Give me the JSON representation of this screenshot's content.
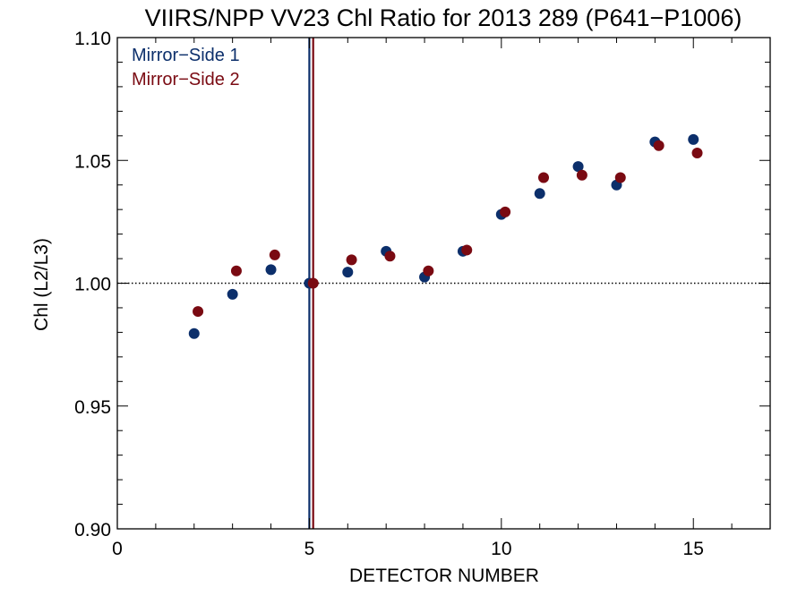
{
  "chart_data": {
    "type": "scatter",
    "title": "VIIRS/NPP VV23 Chl Ratio for 2013 289 (P641−P1006)",
    "xlabel": "DETECTOR NUMBER",
    "ylabel": "Chl (L2/L3)",
    "xlim": [
      0,
      17
    ],
    "ylim": [
      0.9,
      1.1
    ],
    "xticks": [
      0,
      5,
      10,
      15
    ],
    "xtick_labels": [
      "0",
      "5",
      "10",
      "15"
    ],
    "yticks": [
      0.9,
      0.95,
      1.0,
      1.05,
      1.1
    ],
    "ytick_labels": [
      "0.90",
      "0.95",
      "1.00",
      "1.05",
      "1.10"
    ],
    "x_minor_step": 1,
    "y_minor_step": 0.01,
    "reference_line_y": 1.0,
    "reference_line_style": "dotted",
    "vertical_lines": [
      {
        "x": 5.0,
        "color": "#0c2f6b"
      },
      {
        "x": 5.1,
        "color": "#7a0a12"
      }
    ],
    "legend_placement": "top-left",
    "series": [
      {
        "name": "Mirror−Side 1",
        "color": "#0c2f6b",
        "x": [
          2,
          3,
          4,
          5,
          6,
          7,
          8,
          9,
          10,
          11,
          12,
          13,
          14,
          15
        ],
        "y": [
          0.9795,
          0.9955,
          1.0055,
          1.0,
          1.0045,
          1.013,
          1.0025,
          1.013,
          1.028,
          1.0365,
          1.0475,
          1.04,
          1.0575,
          1.0585
        ]
      },
      {
        "name": "Mirror−Side 2",
        "color": "#7a0a12",
        "x": [
          2.1,
          3.1,
          4.1,
          5.1,
          6.1,
          7.1,
          8.1,
          9.1,
          10.1,
          11.1,
          12.1,
          13.1,
          14.1,
          15.1
        ],
        "y": [
          0.9885,
          1.005,
          1.0115,
          1.0,
          1.0095,
          1.011,
          1.005,
          1.0135,
          1.029,
          1.043,
          1.044,
          1.043,
          1.056,
          1.053
        ]
      }
    ]
  }
}
